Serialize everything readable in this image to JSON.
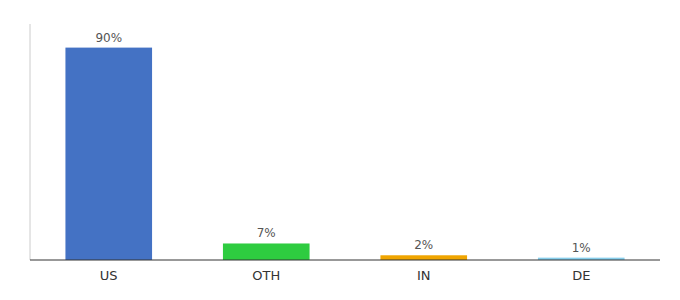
{
  "chart_data": {
    "type": "bar",
    "categories": [
      "US",
      "OTH",
      "IN",
      "DE"
    ],
    "values": [
      90,
      7,
      2,
      1
    ],
    "value_labels": [
      "90%",
      "7%",
      "2%",
      "1%"
    ],
    "colors": [
      "#4472c4",
      "#2ecc40",
      "#f0a500",
      "#87ceeb"
    ],
    "ylim": [
      0,
      100
    ],
    "data_labels": true,
    "tick_labels": "x",
    "grid": false
  }
}
